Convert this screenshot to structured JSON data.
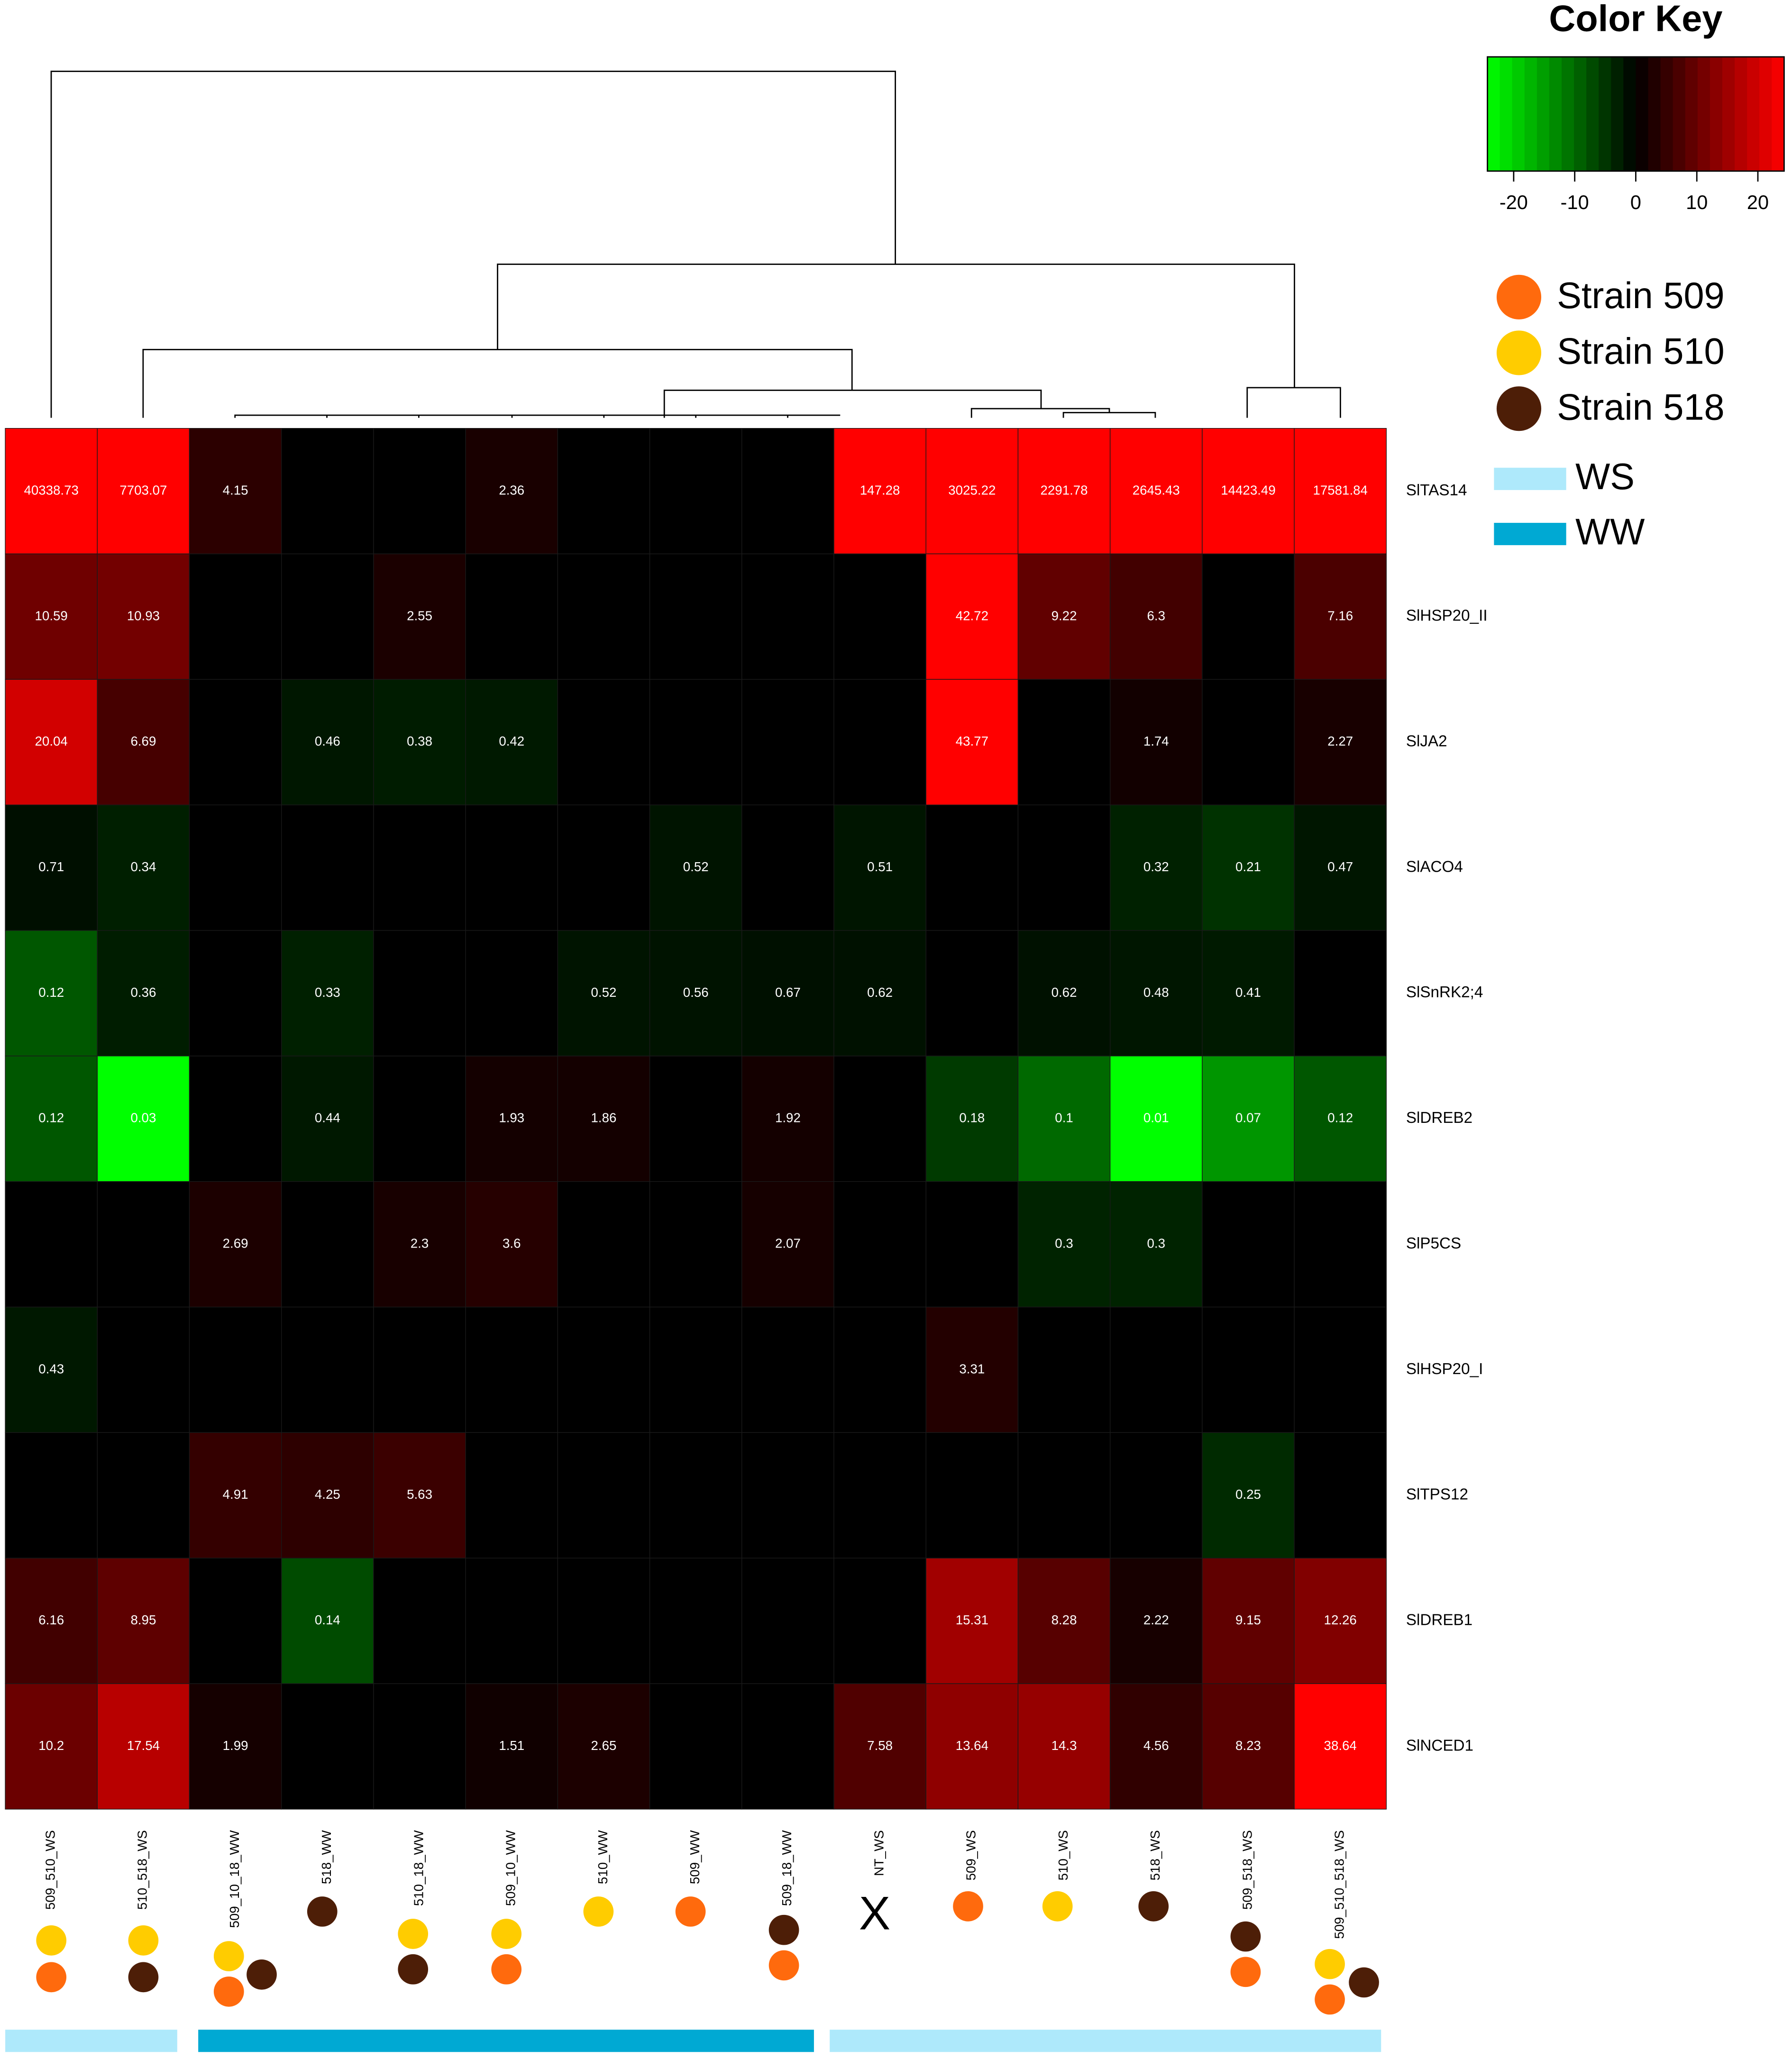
{
  "chart_data": {
    "type": "heatmap",
    "title": "Color Key",
    "columns": [
      "509_510_WS",
      "510_518_WS",
      "509_10_18_WW",
      "518_WW",
      "510_18_WW",
      "509_10_WW",
      "510_WW",
      "509_WW",
      "509_18_WW",
      "NT_WS",
      "509_WS",
      "510_WS",
      "518_WS",
      "509_518_WS",
      "509_510_518_WS"
    ],
    "rows": [
      "SlTAS14",
      "SlHSP20_II",
      "SlJA2",
      "SlACO4",
      "SlSnRK2;4",
      "SlDREB2",
      "SlP5CS",
      "SlHSP20_I",
      "SlTPS12",
      "SlDREB1",
      "SlNCED1"
    ],
    "values": [
      [
        40338.73,
        7703.07,
        4.15,
        null,
        null,
        2.36,
        null,
        null,
        null,
        147.28,
        3025.22,
        2291.78,
        2645.43,
        14423.49,
        17581.84
      ],
      [
        10.59,
        10.93,
        null,
        null,
        2.55,
        null,
        null,
        null,
        null,
        null,
        42.72,
        9.22,
        6.3,
        null,
        7.16
      ],
      [
        20.04,
        6.69,
        null,
        0.46,
        0.38,
        0.42,
        null,
        null,
        null,
        null,
        43.77,
        null,
        1.74,
        null,
        2.27
      ],
      [
        0.71,
        0.34,
        null,
        null,
        null,
        null,
        null,
        0.52,
        null,
        0.51,
        null,
        null,
        0.32,
        0.21,
        0.47
      ],
      [
        0.12,
        0.36,
        null,
        0.33,
        null,
        null,
        0.52,
        0.56,
        0.67,
        0.62,
        null,
        0.62,
        0.48,
        0.41,
        null
      ],
      [
        0.12,
        0.03,
        null,
        0.44,
        null,
        1.93,
        1.86,
        null,
        1.92,
        null,
        0.18,
        0.1,
        0.01,
        0.07,
        0.12
      ],
      [
        null,
        null,
        2.69,
        null,
        2.3,
        3.6,
        null,
        null,
        2.07,
        null,
        null,
        0.3,
        0.3,
        null,
        null
      ],
      [
        0.43,
        null,
        null,
        null,
        null,
        null,
        null,
        null,
        null,
        null,
        3.31,
        null,
        null,
        null,
        null
      ],
      [
        null,
        null,
        4.91,
        4.25,
        5.63,
        null,
        null,
        null,
        null,
        null,
        null,
        null,
        null,
        0.25,
        null
      ],
      [
        6.16,
        8.95,
        null,
        0.14,
        null,
        null,
        null,
        null,
        null,
        null,
        15.31,
        8.28,
        2.22,
        9.15,
        12.26
      ],
      [
        10.2,
        17.54,
        1.99,
        null,
        null,
        1.51,
        2.65,
        null,
        null,
        7.58,
        13.64,
        14.3,
        4.56,
        8.23,
        38.64
      ]
    ],
    "color_scale": {
      "lim": [
        -24.3,
        24.3
      ],
      "ticks": [
        -20,
        -10,
        0,
        10,
        20
      ],
      "low": "#00ff00",
      "mid": "#000000",
      "high": "#ff0000"
    },
    "strains": [
      {
        "name": "Strain 509",
        "color": "#ff6a0d"
      },
      {
        "name": "Strain 510",
        "color": "#ffcc00"
      },
      {
        "name": "Strain 518",
        "color": "#4d1e07"
      }
    ],
    "groups": [
      {
        "name": "WS",
        "color": "#aee9fb"
      },
      {
        "name": "WW",
        "color": "#00a9d3"
      }
    ],
    "no_strain_marker": "X"
  }
}
